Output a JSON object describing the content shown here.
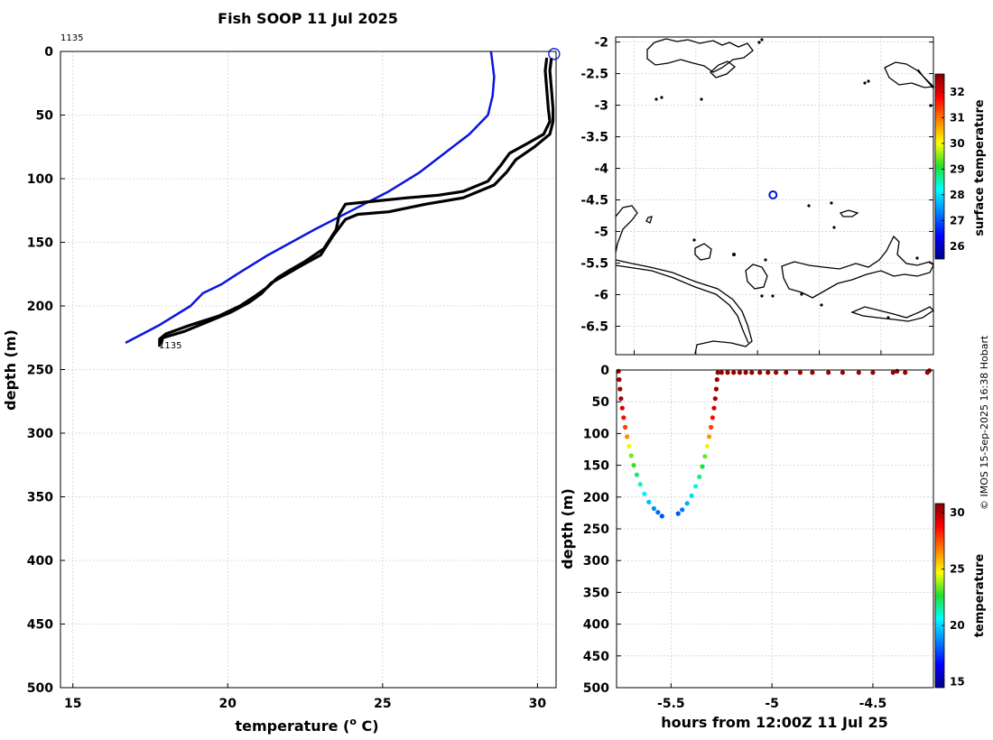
{
  "title": "Fish SOOP 11 Jul 2025",
  "credit": "© IMOS 15-Sep-2025 16:38 Hobart",
  "profile_id": "1135",
  "colors": {
    "profile": "#000000",
    "climatology": "#0a14e0",
    "marker": "#0a14e0"
  },
  "chart_data": [
    {
      "type": "line",
      "name": "temperature-profile",
      "xlabel": "temperature (o C)",
      "xlabel_main": "temperature (",
      "xlabel_sup": "o",
      "xlabel_end": " C)",
      "ylabel": "depth (m)",
      "xlim": [
        14.6,
        30.6
      ],
      "ylim": [
        0,
        500
      ],
      "xticks": [
        15,
        20,
        25,
        30
      ],
      "yticks": [
        0,
        50,
        100,
        150,
        200,
        250,
        300,
        350,
        400,
        450,
        500
      ],
      "profile_label_top": "1135",
      "profile_label_bottom": "1135",
      "series": [
        {
          "name": "climatology",
          "color": "#0a14e0",
          "x": [
            28.5,
            28.55,
            28.6,
            28.55,
            28.4,
            27.8,
            27.0,
            26.2,
            25.2,
            24.0,
            22.8,
            21.3,
            20.3,
            19.8,
            19.2,
            18.8,
            17.8,
            16.7
          ],
          "y": [
            0,
            10,
            20,
            35,
            50,
            65,
            80,
            95,
            110,
            125,
            140,
            160,
            175,
            183,
            190,
            200,
            215,
            229
          ]
        },
        {
          "name": "observed-a",
          "color": "#000000",
          "x": [
            30.3,
            30.25,
            30.3,
            30.35,
            30.4,
            30.2,
            29.7,
            29.1,
            28.8,
            28.4,
            27.6,
            26.8,
            25.8,
            24.6,
            23.8,
            23.6,
            23.5,
            23.1,
            22.5,
            22.0,
            21.6,
            21.3,
            20.9,
            20.4,
            19.7,
            18.8,
            18.0,
            17.8,
            17.8
          ],
          "y": [
            5,
            15,
            30,
            45,
            55,
            65,
            72,
            80,
            90,
            102,
            110,
            113,
            115,
            118,
            120,
            128,
            140,
            155,
            165,
            172,
            178,
            185,
            192,
            200,
            208,
            215,
            222,
            226,
            232
          ]
        },
        {
          "name": "observed-b",
          "color": "#000000",
          "x": [
            30.45,
            30.4,
            30.45,
            30.5,
            30.5,
            30.4,
            29.9,
            29.3,
            29.0,
            28.6,
            27.6,
            26.4,
            25.2,
            24.2,
            23.8,
            23.4,
            23.0,
            22.4,
            21.9,
            21.4,
            21.1,
            20.7,
            20.1,
            19.4,
            18.6,
            17.9,
            17.85
          ],
          "y": [
            5,
            15,
            30,
            45,
            55,
            65,
            75,
            85,
            95,
            105,
            115,
            120,
            126,
            128,
            132,
            145,
            160,
            168,
            175,
            182,
            190,
            197,
            205,
            212,
            220,
            225,
            230
          ]
        }
      ],
      "surface_marker": {
        "x": 30.45,
        "y": 2
      }
    },
    {
      "type": "map",
      "name": "location-map",
      "colorbar_label": "surface temperature",
      "colorbar_ticks": [
        26,
        27,
        28,
        29,
        30,
        31,
        32
      ],
      "colorbar_range": [
        25.5,
        32.7
      ],
      "xticks": [
        146,
        147,
        148,
        149,
        150
      ],
      "yticks": [
        -2,
        -2.5,
        -3,
        -3.5,
        -4,
        -4.5,
        -5,
        -5.5,
        -6,
        -6.5
      ],
      "ytick_labels": [
        "-2",
        "-2.5",
        "-3",
        "-3.5",
        "-4",
        "-4.5",
        "-5",
        "-5.5",
        "-6",
        "-6.5"
      ],
      "xlim": [
        145.7,
        150.85
      ],
      "ylim": [
        -6.95,
        -1.92
      ],
      "station": {
        "lon": 148.25,
        "lat": -4.42
      }
    },
    {
      "type": "scatter",
      "name": "depth-time-section",
      "xlabel": "hours from 12:00Z 11 Jul 25",
      "ylabel": "depth (m)",
      "colorbar_label": "temperature",
      "colorbar_ticks": [
        15,
        20,
        25,
        30
      ],
      "colorbar_range": [
        14.5,
        30.8
      ],
      "xlim": [
        -5.77,
        -4.2
      ],
      "ylim": [
        0,
        500
      ],
      "xticks": [
        -5.5,
        -5,
        -4.5
      ],
      "xtick_labels": [
        "-5.5",
        "-5",
        "-4.5"
      ],
      "yticks": [
        0,
        50,
        100,
        150,
        200,
        250,
        300,
        350,
        400,
        450,
        500
      ],
      "points": [
        {
          "x": -5.76,
          "y": 2,
          "t": 30.3
        },
        {
          "x": -5.757,
          "y": 15,
          "t": 30.3
        },
        {
          "x": -5.753,
          "y": 30,
          "t": 30.3
        },
        {
          "x": -5.748,
          "y": 45,
          "t": 30.2
        },
        {
          "x": -5.742,
          "y": 60,
          "t": 29.5
        },
        {
          "x": -5.735,
          "y": 75,
          "t": 28.6
        },
        {
          "x": -5.727,
          "y": 90,
          "t": 27.8
        },
        {
          "x": -5.718,
          "y": 105,
          "t": 26.5
        },
        {
          "x": -5.708,
          "y": 120,
          "t": 24.5
        },
        {
          "x": -5.697,
          "y": 135,
          "t": 23.4
        },
        {
          "x": -5.685,
          "y": 150,
          "t": 22.8
        },
        {
          "x": -5.67,
          "y": 165,
          "t": 22.0
        },
        {
          "x": -5.653,
          "y": 180,
          "t": 21.2
        },
        {
          "x": -5.632,
          "y": 195,
          "t": 20.4
        },
        {
          "x": -5.61,
          "y": 208,
          "t": 19.6
        },
        {
          "x": -5.585,
          "y": 218,
          "t": 18.8
        },
        {
          "x": -5.565,
          "y": 224,
          "t": 18.2
        },
        {
          "x": -5.545,
          "y": 230,
          "t": 17.8
        },
        {
          "x": -5.465,
          "y": 226,
          "t": 17.9
        },
        {
          "x": -5.445,
          "y": 220,
          "t": 18.5
        },
        {
          "x": -5.42,
          "y": 210,
          "t": 19.3
        },
        {
          "x": -5.398,
          "y": 198,
          "t": 20.1
        },
        {
          "x": -5.378,
          "y": 183,
          "t": 21.0
        },
        {
          "x": -5.36,
          "y": 168,
          "t": 21.8
        },
        {
          "x": -5.345,
          "y": 152,
          "t": 22.6
        },
        {
          "x": -5.332,
          "y": 136,
          "t": 23.3
        },
        {
          "x": -5.321,
          "y": 120,
          "t": 24.5
        },
        {
          "x": -5.311,
          "y": 105,
          "t": 26.3
        },
        {
          "x": -5.302,
          "y": 90,
          "t": 27.7
        },
        {
          "x": -5.294,
          "y": 75,
          "t": 28.6
        },
        {
          "x": -5.287,
          "y": 60,
          "t": 29.5
        },
        {
          "x": -5.281,
          "y": 45,
          "t": 30.2
        },
        {
          "x": -5.276,
          "y": 30,
          "t": 30.4
        },
        {
          "x": -5.272,
          "y": 15,
          "t": 30.4
        },
        {
          "x": -5.268,
          "y": 4,
          "t": 30.4
        },
        {
          "x": -5.25,
          "y": 4,
          "t": 30.4
        },
        {
          "x": -5.22,
          "y": 4,
          "t": 30.4
        },
        {
          "x": -5.19,
          "y": 4,
          "t": 30.4
        },
        {
          "x": -5.16,
          "y": 4,
          "t": 30.4
        },
        {
          "x": -5.13,
          "y": 4,
          "t": 30.4
        },
        {
          "x": -5.1,
          "y": 4,
          "t": 30.4
        },
        {
          "x": -5.06,
          "y": 4,
          "t": 30.4
        },
        {
          "x": -5.02,
          "y": 4,
          "t": 30.4
        },
        {
          "x": -4.98,
          "y": 4,
          "t": 30.4
        },
        {
          "x": -4.93,
          "y": 4,
          "t": 30.4
        },
        {
          "x": -4.86,
          "y": 4,
          "t": 30.4
        },
        {
          "x": -4.8,
          "y": 4,
          "t": 30.4
        },
        {
          "x": -4.72,
          "y": 4,
          "t": 30.4
        },
        {
          "x": -4.65,
          "y": 4,
          "t": 30.4
        },
        {
          "x": -4.57,
          "y": 4,
          "t": 30.4
        },
        {
          "x": -4.5,
          "y": 4,
          "t": 30.4
        },
        {
          "x": -4.4,
          "y": 4,
          "t": 30.4
        },
        {
          "x": -4.38,
          "y": 2,
          "t": 30.4
        },
        {
          "x": -4.34,
          "y": 4,
          "t": 30.4
        },
        {
          "x": -4.23,
          "y": 4,
          "t": 30.4
        },
        {
          "x": -4.22,
          "y": 1,
          "t": 30.4
        }
      ]
    }
  ]
}
